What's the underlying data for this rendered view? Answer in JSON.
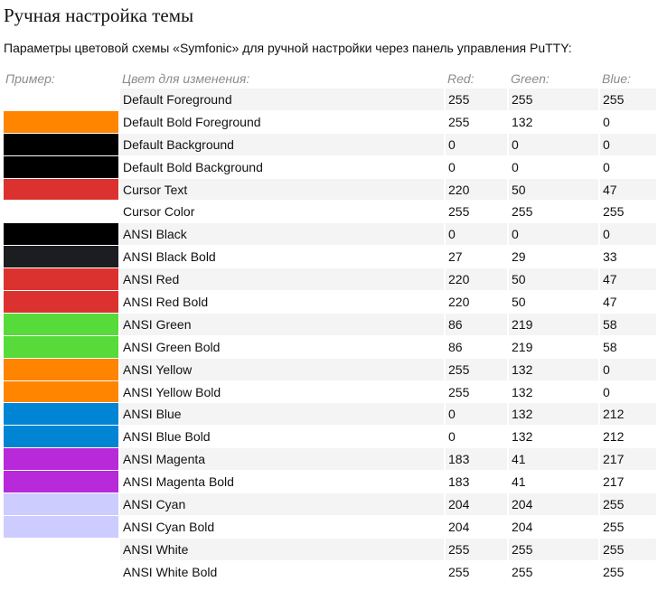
{
  "page": {
    "title": "Ручная настройка темы",
    "intro": "Параметры цветовой схемы «Symfonic» для ручной настройки через панель управления PuTTY:"
  },
  "table": {
    "headers": {
      "sample": "Пример:",
      "name": "Цвет для изменения:",
      "red": "Red:",
      "green": "Green:",
      "blue": "Blue:"
    },
    "rows": [
      {
        "name": "Default Foreground",
        "r": 255,
        "g": 255,
        "b": 255,
        "swatch": "#ffffff"
      },
      {
        "name": "Default Bold Foreground",
        "r": 255,
        "g": 132,
        "b": 0,
        "swatch": "#ff8400"
      },
      {
        "name": "Default Background",
        "r": 0,
        "g": 0,
        "b": 0,
        "swatch": "#000000"
      },
      {
        "name": "Default Bold Background",
        "r": 0,
        "g": 0,
        "b": 0,
        "swatch": "#000000"
      },
      {
        "name": "Cursor Text",
        "r": 220,
        "g": 50,
        "b": 47,
        "swatch": "#dc322f"
      },
      {
        "name": "Cursor Color",
        "r": 255,
        "g": 255,
        "b": 255,
        "swatch": "#ffffff"
      },
      {
        "name": "ANSI Black",
        "r": 0,
        "g": 0,
        "b": 0,
        "swatch": "#000000"
      },
      {
        "name": "ANSI Black Bold",
        "r": 27,
        "g": 29,
        "b": 33,
        "swatch": "#1b1d21"
      },
      {
        "name": "ANSI Red",
        "r": 220,
        "g": 50,
        "b": 47,
        "swatch": "#dc322f"
      },
      {
        "name": "ANSI Red Bold",
        "r": 220,
        "g": 50,
        "b": 47,
        "swatch": "#dc322f"
      },
      {
        "name": "ANSI Green",
        "r": 86,
        "g": 219,
        "b": 58,
        "swatch": "#56db3a"
      },
      {
        "name": "ANSI Green Bold",
        "r": 86,
        "g": 219,
        "b": 58,
        "swatch": "#56db3a"
      },
      {
        "name": "ANSI Yellow",
        "r": 255,
        "g": 132,
        "b": 0,
        "swatch": "#ff8400"
      },
      {
        "name": "ANSI Yellow Bold",
        "r": 255,
        "g": 132,
        "b": 0,
        "swatch": "#ff8400"
      },
      {
        "name": "ANSI Blue",
        "r": 0,
        "g": 132,
        "b": 212,
        "swatch": "#0084d4"
      },
      {
        "name": "ANSI Blue Bold",
        "r": 0,
        "g": 132,
        "b": 212,
        "swatch": "#0084d4"
      },
      {
        "name": "ANSI Magenta",
        "r": 183,
        "g": 41,
        "b": 217,
        "swatch": "#b729d9"
      },
      {
        "name": "ANSI Magenta Bold",
        "r": 183,
        "g": 41,
        "b": 217,
        "swatch": "#b729d9"
      },
      {
        "name": "ANSI Cyan",
        "r": 204,
        "g": 204,
        "b": 255,
        "swatch": "#ccccff"
      },
      {
        "name": "ANSI Cyan Bold",
        "r": 204,
        "g": 204,
        "b": 255,
        "swatch": "#ccccff"
      },
      {
        "name": "ANSI White",
        "r": 255,
        "g": 255,
        "b": 255,
        "swatch": "#ffffff"
      },
      {
        "name": "ANSI White Bold",
        "r": 255,
        "g": 255,
        "b": 255,
        "swatch": "#ffffff"
      }
    ]
  }
}
